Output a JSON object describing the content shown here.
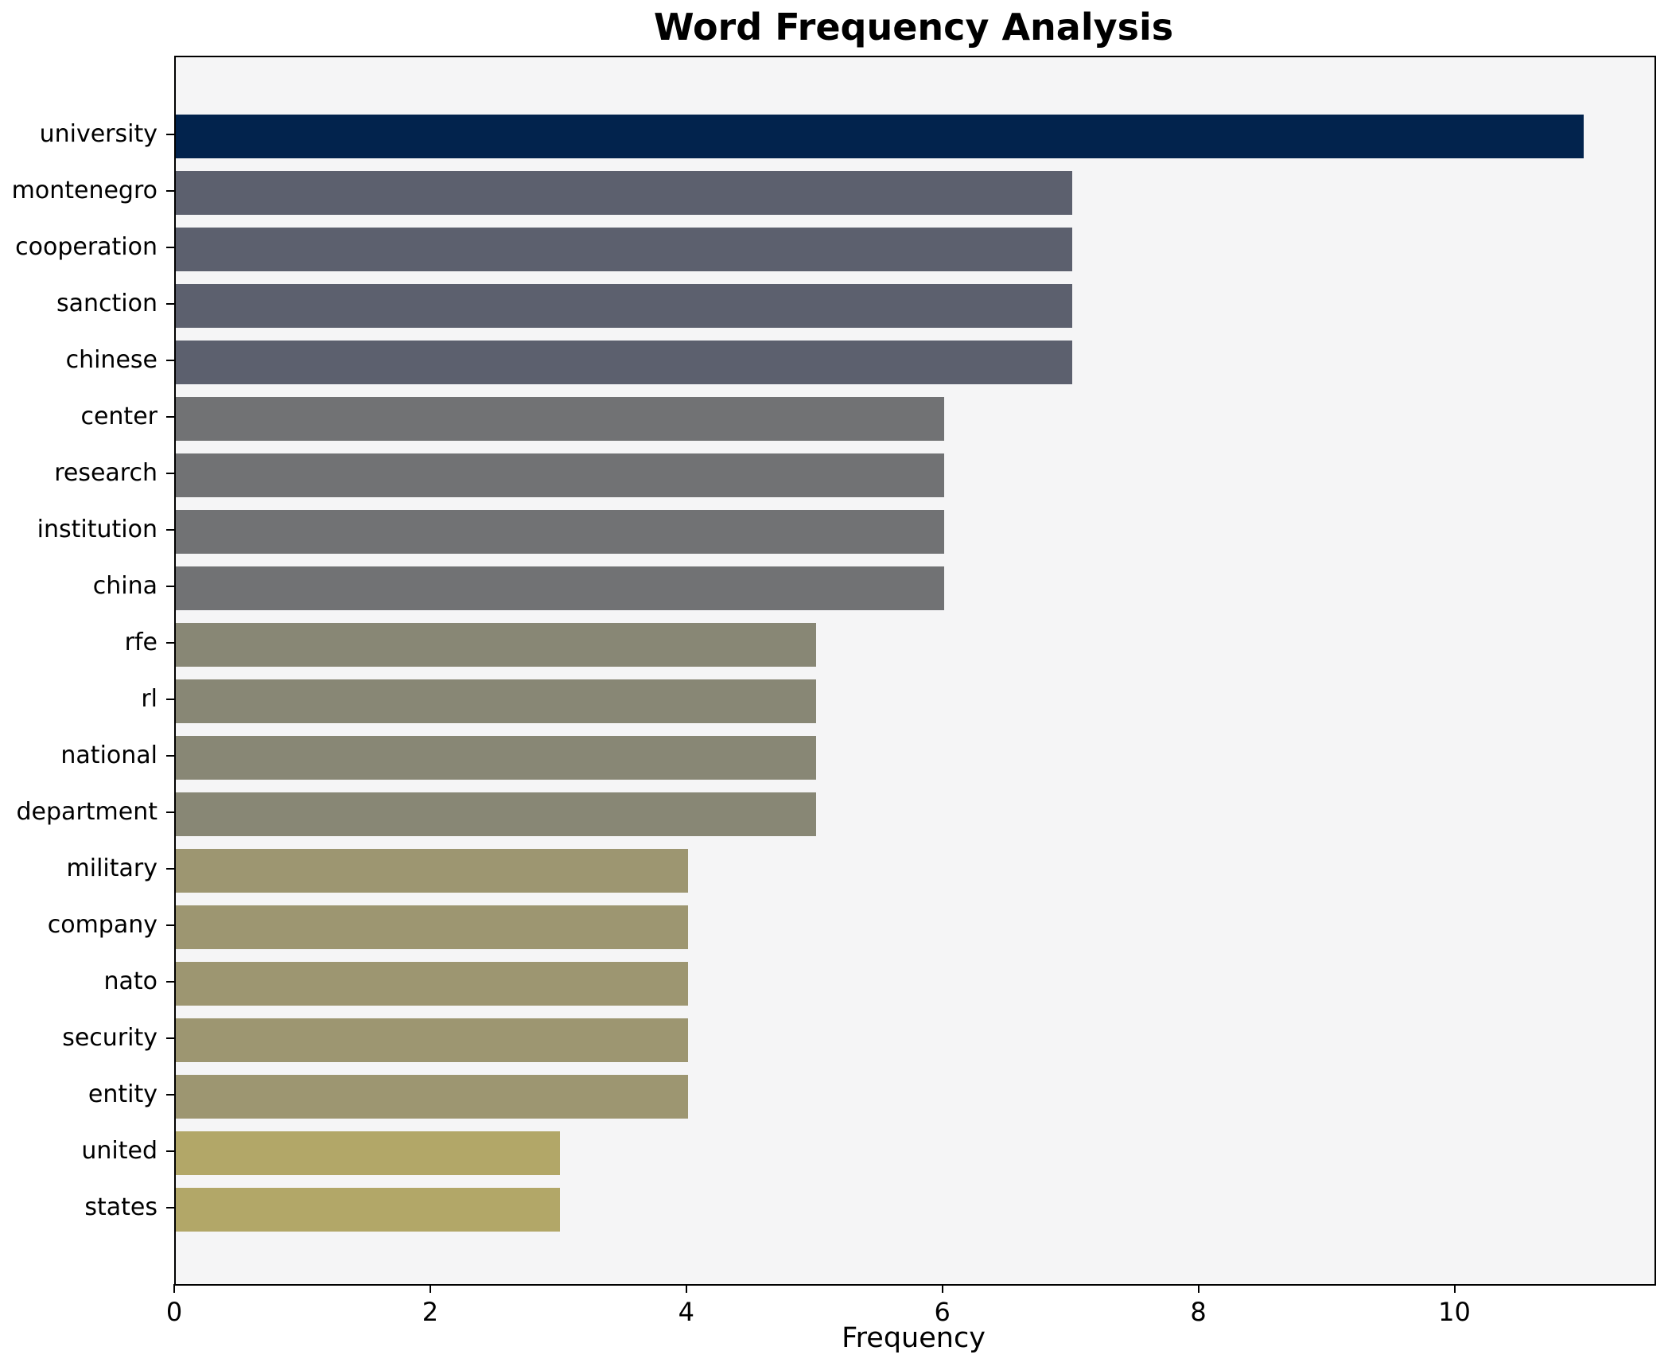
{
  "chart_data": {
    "type": "bar",
    "orientation": "horizontal",
    "title": "Word Frequency Analysis",
    "xlabel": "Frequency",
    "ylabel": "",
    "categories": [
      "university",
      "montenegro",
      "cooperation",
      "sanction",
      "chinese",
      "center",
      "research",
      "institution",
      "china",
      "rfe",
      "rl",
      "national",
      "department",
      "military",
      "company",
      "nato",
      "security",
      "entity",
      "united",
      "states"
    ],
    "values": [
      11,
      7,
      7,
      7,
      7,
      6,
      6,
      6,
      6,
      5,
      5,
      5,
      5,
      4,
      4,
      4,
      4,
      4,
      3,
      3
    ],
    "bar_colors": [
      "#02234d",
      "#5c606e",
      "#5c606e",
      "#5c606e",
      "#5c606e",
      "#717274",
      "#717274",
      "#717274",
      "#717274",
      "#888775",
      "#888775",
      "#888775",
      "#888775",
      "#9d9671",
      "#9d9671",
      "#9d9671",
      "#9d9671",
      "#9d9671",
      "#b2a768",
      "#b2a768"
    ],
    "xticks": [
      0,
      2,
      4,
      6,
      8,
      10
    ],
    "xlim": [
      0,
      11.55
    ],
    "grid": false,
    "legend": "none",
    "plot_background": "#f5f5f6",
    "figure_background": "#ffffff",
    "spine_color": "#000000"
  }
}
